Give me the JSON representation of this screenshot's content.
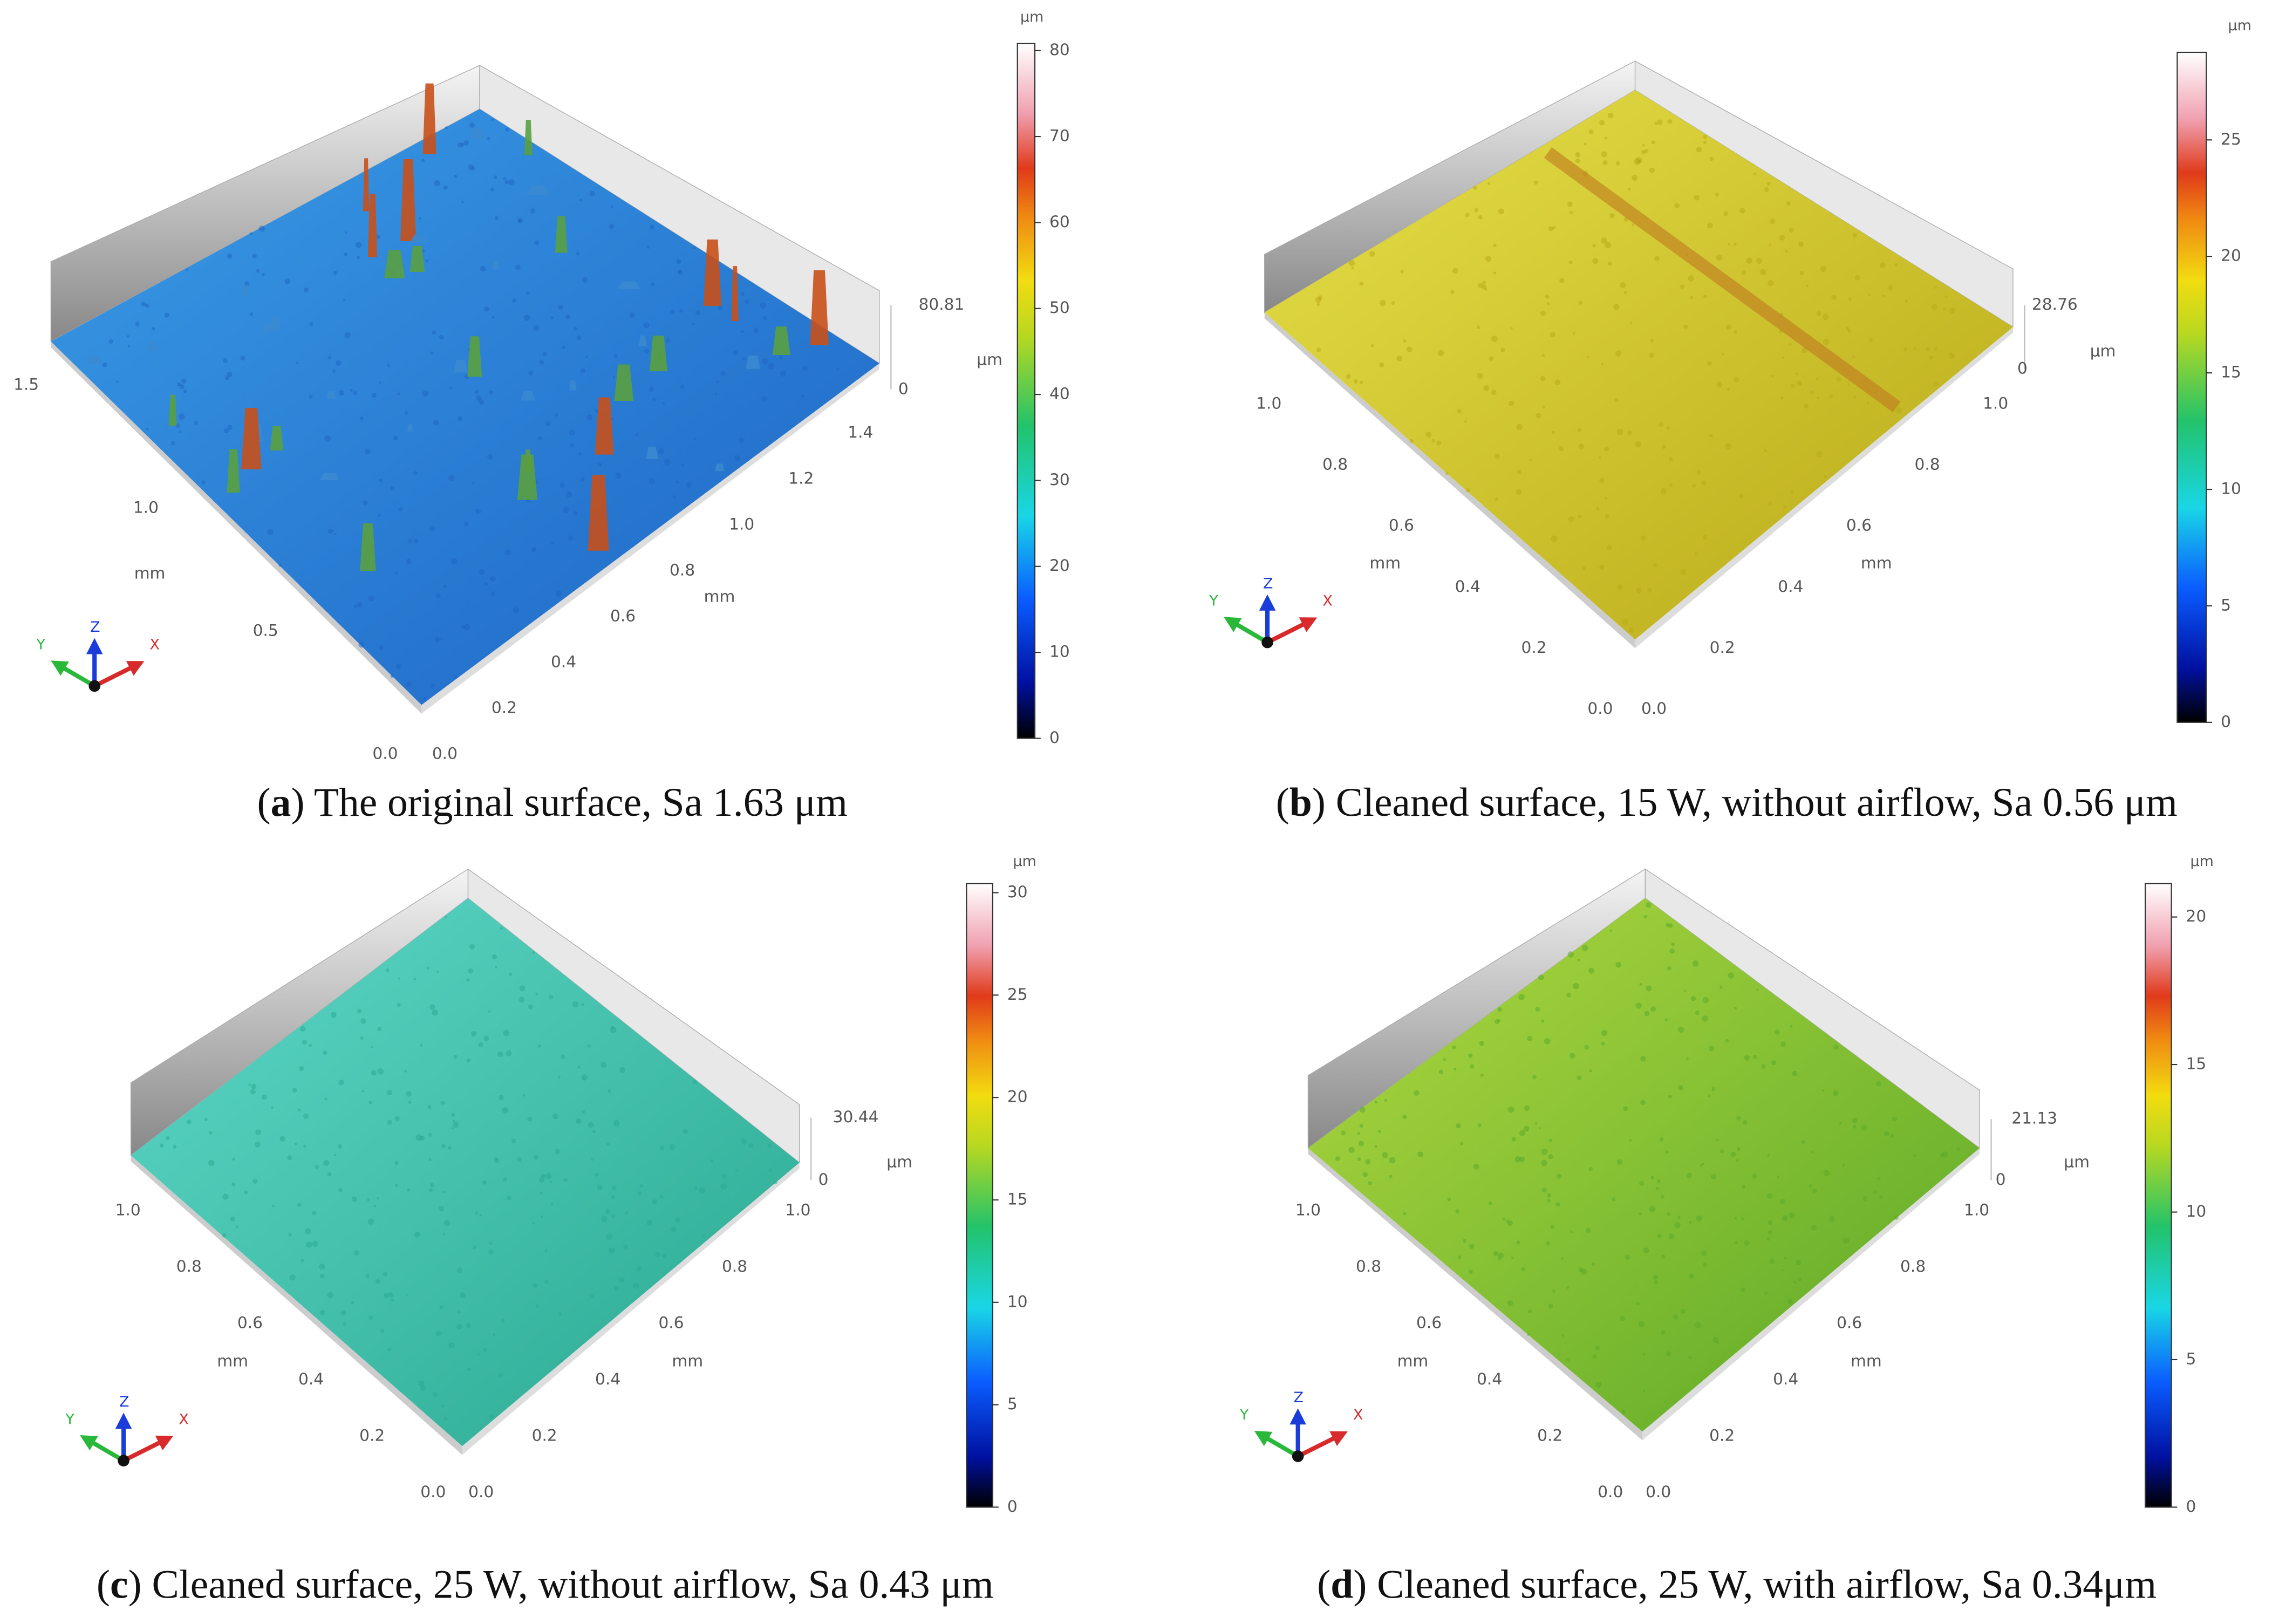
{
  "triad": {
    "x": "X",
    "y": "Y",
    "z": "Z"
  },
  "panels": [
    {
      "caption": [
        "(",
        "a",
        ") The original surface, Sa 1.63 μm"
      ],
      "colorbar_unit": "μm",
      "colorbar_ticks": [
        0,
        10,
        20,
        30,
        40,
        50,
        60,
        70,
        80
      ],
      "z_min": 0,
      "z_max": 80.81,
      "z_unit": "μm",
      "y_ticks": [
        "1.5",
        "1.0",
        "0.5",
        "0.0"
      ],
      "y_label": "mm",
      "x_ticks": [
        "0.0",
        "0.2",
        "0.4",
        "0.6",
        "0.8",
        "1.0",
        "1.2",
        "1.4"
      ],
      "x_label": "mm"
    },
    {
      "caption": [
        "(",
        "b",
        ") Cleaned surface, 15 W, without airflow, Sa 0.56 μm"
      ],
      "colorbar_unit": "μm",
      "colorbar_ticks": [
        0,
        5,
        10,
        15,
        20,
        25
      ],
      "z_min": 0,
      "z_max": 28.76,
      "z_unit": "μm",
      "y_ticks": [
        "1.0",
        "0.8",
        "0.6",
        "0.4",
        "0.2",
        "0.0"
      ],
      "y_label": "mm",
      "x_ticks": [
        "0.0",
        "0.2",
        "0.4",
        "0.6",
        "0.8",
        "1.0"
      ],
      "x_label": "mm"
    },
    {
      "caption": [
        "(",
        "c",
        ") Cleaned surface, 25 W, without airflow, Sa 0.43 μm"
      ],
      "colorbar_unit": "μm",
      "colorbar_ticks": [
        0,
        5,
        10,
        15,
        20,
        25,
        30
      ],
      "z_min": 0,
      "z_max": 30.44,
      "z_unit": "μm",
      "y_ticks": [
        "1.0",
        "0.8",
        "0.6",
        "0.4",
        "0.2",
        "0.0"
      ],
      "y_label": "mm",
      "x_ticks": [
        "0.0",
        "0.2",
        "0.4",
        "0.6",
        "0.8",
        "1.0"
      ],
      "x_label": "mm"
    },
    {
      "caption": [
        "(",
        "d",
        ") Cleaned surface, 25 W, with airflow, Sa 0.34μm"
      ],
      "colorbar_unit": "μm",
      "colorbar_ticks": [
        0,
        5,
        10,
        15,
        20
      ],
      "z_min": 0,
      "z_max": 21.13,
      "z_unit": "μm",
      "y_ticks": [
        "1.0",
        "0.8",
        "0.6",
        "0.4",
        "0.2",
        "0.0"
      ],
      "y_label": "mm",
      "x_ticks": [
        "0.0",
        "0.2",
        "0.4",
        "0.6",
        "0.8",
        "1.0"
      ],
      "x_label": "mm"
    }
  ]
}
